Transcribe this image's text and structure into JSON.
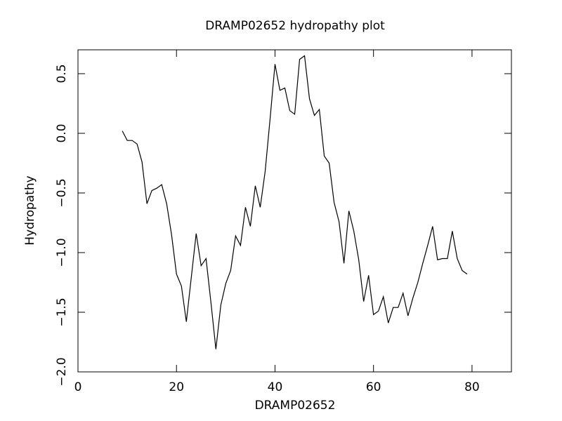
{
  "chart_data": {
    "type": "line",
    "title": "DRAMP02652 hydropathy plot",
    "x_label": "DRAMP02652",
    "y_label": "Hydropathy",
    "x": [
      9,
      10,
      11,
      12,
      13,
      14,
      15,
      16,
      17,
      18,
      19,
      20,
      21,
      22,
      23,
      24,
      25,
      26,
      27,
      28,
      29,
      30,
      31,
      32,
      33,
      34,
      35,
      36,
      37,
      38,
      39,
      40,
      41,
      42,
      43,
      44,
      45,
      46,
      47,
      48,
      49,
      50,
      51,
      52,
      53,
      54,
      55,
      56,
      57,
      58,
      59,
      60,
      61,
      62,
      63,
      64,
      65,
      66,
      67,
      68,
      69,
      70,
      71,
      72,
      73,
      74,
      75,
      76,
      77,
      78,
      79
    ],
    "series": [
      {
        "name": "Hydropathy",
        "color": "#000000",
        "values": [
          0.02,
          -0.06,
          -0.06,
          -0.09,
          -0.24,
          -0.59,
          -0.48,
          -0.46,
          -0.43,
          -0.59,
          -0.85,
          -1.18,
          -1.28,
          -1.58,
          -1.21,
          -0.84,
          -1.11,
          -1.05,
          -1.42,
          -1.81,
          -1.44,
          -1.26,
          -1.15,
          -0.86,
          -0.94,
          -0.62,
          -0.78,
          -0.44,
          -0.62,
          -0.32,
          0.12,
          0.58,
          0.36,
          0.38,
          0.19,
          0.16,
          0.62,
          0.65,
          0.29,
          0.15,
          0.2,
          -0.19,
          -0.25,
          -0.58,
          -0.74,
          -1.09,
          -0.65,
          -0.82,
          -1.06,
          -1.41,
          -1.19,
          -1.52,
          -1.49,
          -1.37,
          -1.59,
          -1.46,
          -1.46,
          -1.34,
          -1.53,
          -1.38,
          -1.25,
          -1.09,
          -0.94,
          -0.78,
          -1.06,
          -1.05,
          -1.05,
          -0.82,
          -1.05,
          -1.15,
          -1.18
        ]
      }
    ],
    "xlim": [
      0,
      88
    ],
    "xticks": [
      0,
      20,
      40,
      60,
      80
    ],
    "ylim": [
      -2.0,
      0.7
    ],
    "yticks": [
      {
        "value": -2.0,
        "label": "−2.0"
      },
      {
        "value": -1.5,
        "label": "−1.5"
      },
      {
        "value": -1.0,
        "label": "−1.0"
      },
      {
        "value": -0.5,
        "label": "−0.5"
      },
      {
        "value": 0.0,
        "label": "0.0"
      },
      {
        "value": 0.5,
        "label": "0.5"
      }
    ]
  }
}
